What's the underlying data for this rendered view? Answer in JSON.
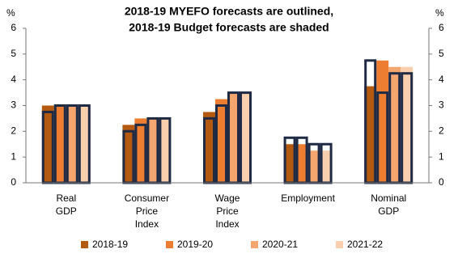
{
  "chart_data": {
    "type": "bar",
    "title": [
      "2018-19 MYEFO forecasts are outlined,",
      "2018-19 Budget forecasts are shaded"
    ],
    "ylabel": "%",
    "y2label": "%",
    "categories": [
      [
        "Real",
        "GDP"
      ],
      [
        "Consumer",
        "Price",
        "Index"
      ],
      [
        "Wage",
        "Price",
        "Index"
      ],
      [
        "Employment"
      ],
      [
        "Nominal",
        "GDP"
      ]
    ],
    "outline_color": "#1f2a44",
    "series": [
      {
        "name": "2018-19",
        "color": "#b35a10",
        "values": [
          3,
          2.25,
          2.75,
          1.5,
          3.75
        ],
        "outline_values": [
          2.75,
          2,
          2.5,
          1.75,
          4.75
        ]
      },
      {
        "name": "2019-20",
        "color": "#ed7d31",
        "values": [
          3,
          2.5,
          3.25,
          1.5,
          4.75
        ],
        "outline_values": [
          3,
          2.25,
          3,
          1.75,
          3.5
        ]
      },
      {
        "name": "2020-21",
        "color": "#f4a66e",
        "values": [
          3,
          2.5,
          3.5,
          1.25,
          4.5
        ],
        "outline_values": [
          3,
          2.5,
          3.5,
          1.5,
          4.25
        ]
      },
      {
        "name": "2021-22",
        "color": "#f9cfae",
        "values": [
          3,
          2.5,
          3.5,
          1.25,
          4.5
        ],
        "outline_values": [
          3,
          2.5,
          3.5,
          1.5,
          4.25
        ]
      }
    ],
    "ylim": [
      0,
      6
    ],
    "yticks": [
      0,
      1,
      2,
      3,
      4,
      5,
      6
    ],
    "y2lim": [
      0,
      6
    ],
    "y2ticks": [
      0,
      1,
      2,
      3,
      4,
      5,
      6
    ],
    "grid": false,
    "legend": "bottom"
  }
}
